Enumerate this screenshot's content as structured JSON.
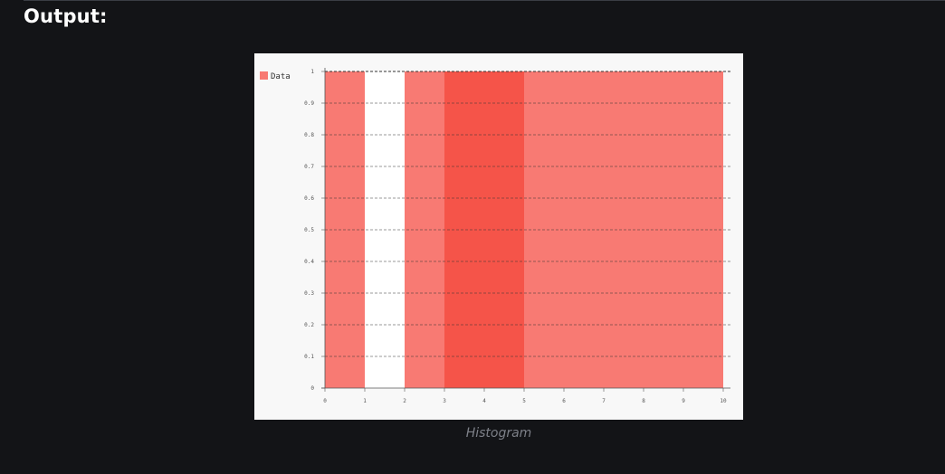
{
  "heading": "Output:",
  "caption": "Histogram",
  "colors": {
    "background": "#131417",
    "plot_background": "#ffffff",
    "bar": "#f87a73",
    "bar_highlight": "#f55449",
    "grid": "#333333"
  },
  "chart_data": {
    "type": "bar",
    "title": "",
    "xlabel": "",
    "ylabel": "",
    "legend": {
      "entries": [
        "Data"
      ],
      "placement": "top-left"
    },
    "grid": true,
    "xlim": [
      0,
      10
    ],
    "ylim": [
      0,
      1
    ],
    "x_ticks": [
      0,
      1,
      2,
      3,
      4,
      5,
      6,
      7,
      8,
      9,
      10
    ],
    "y_ticks": [
      0,
      0.1,
      0.2,
      0.3,
      0.4,
      0.5,
      0.6,
      0.7,
      0.8,
      0.9,
      1
    ],
    "bins": [
      {
        "start": 0,
        "end": 1,
        "value": 1
      },
      {
        "start": 1,
        "end": 2,
        "value": 0
      },
      {
        "start": 2,
        "end": 3,
        "value": 1
      },
      {
        "start": 3,
        "end": 5,
        "value": 1,
        "highlight": true
      },
      {
        "start": 5,
        "end": 10,
        "value": 1
      }
    ]
  }
}
